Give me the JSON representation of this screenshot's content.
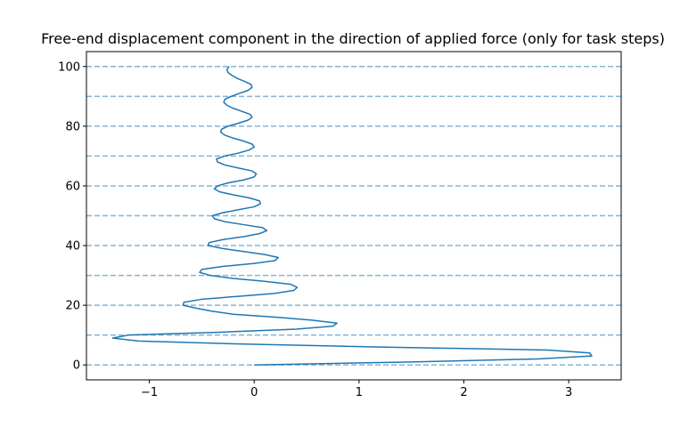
{
  "chart_data": {
    "type": "line",
    "title": "Free-end displacement component in the direction of applied force (only for task steps)",
    "xlabel": "",
    "ylabel": "",
    "xlim": [
      -1.6,
      3.5
    ],
    "ylim": [
      -5,
      105
    ],
    "xticks": [
      -1,
      0,
      1,
      2,
      3
    ],
    "yticks": [
      0,
      20,
      40,
      60,
      80,
      100
    ],
    "grid": false,
    "reference_lines": {
      "orientation": "horizontal",
      "style": "dashed",
      "color": "#1f77b4",
      "y": [
        0,
        10,
        20,
        30,
        40,
        50,
        60,
        70,
        80,
        90,
        100
      ]
    },
    "series": [
      {
        "color": "#1f77b4",
        "points": [
          [
            0.0,
            0
          ],
          [
            1.5,
            1
          ],
          [
            2.7,
            2
          ],
          [
            3.22,
            3
          ],
          [
            3.2,
            4
          ],
          [
            2.8,
            5
          ],
          [
            1.2,
            6
          ],
          [
            -0.1,
            7
          ],
          [
            -1.1,
            8
          ],
          [
            -1.35,
            9
          ],
          [
            -1.2,
            10
          ],
          [
            -0.3,
            11
          ],
          [
            0.4,
            12
          ],
          [
            0.75,
            13
          ],
          [
            0.79,
            14
          ],
          [
            0.55,
            15
          ],
          [
            0.2,
            16
          ],
          [
            -0.2,
            17
          ],
          [
            -0.4,
            18
          ],
          [
            -0.55,
            19
          ],
          [
            -0.68,
            20
          ],
          [
            -0.67,
            21
          ],
          [
            -0.5,
            22
          ],
          [
            -0.15,
            23
          ],
          [
            0.2,
            24
          ],
          [
            0.38,
            25
          ],
          [
            0.41,
            26
          ],
          [
            0.35,
            27
          ],
          [
            0.1,
            28
          ],
          [
            -0.2,
            29
          ],
          [
            -0.42,
            30
          ],
          [
            -0.52,
            31
          ],
          [
            -0.5,
            32
          ],
          [
            -0.3,
            33
          ],
          [
            0.0,
            34
          ],
          [
            0.2,
            35
          ],
          [
            0.23,
            36
          ],
          [
            0.1,
            37
          ],
          [
            -0.1,
            38
          ],
          [
            -0.3,
            39
          ],
          [
            -0.44,
            40
          ],
          [
            -0.43,
            41
          ],
          [
            -0.3,
            42
          ],
          [
            -0.1,
            43
          ],
          [
            0.05,
            44
          ],
          [
            0.12,
            45
          ],
          [
            0.08,
            46
          ],
          [
            -0.1,
            47
          ],
          [
            -0.28,
            48
          ],
          [
            -0.38,
            49
          ],
          [
            -0.4,
            50
          ],
          [
            -0.3,
            51
          ],
          [
            -0.15,
            52
          ],
          [
            0.0,
            53
          ],
          [
            0.06,
            54
          ],
          [
            0.05,
            55
          ],
          [
            -0.05,
            56
          ],
          [
            -0.2,
            57
          ],
          [
            -0.33,
            58
          ],
          [
            -0.38,
            59
          ],
          [
            -0.35,
            60
          ],
          [
            -0.25,
            61
          ],
          [
            -0.1,
            62
          ],
          [
            0.0,
            63
          ],
          [
            0.02,
            64
          ],
          [
            -0.02,
            65
          ],
          [
            -0.15,
            66
          ],
          [
            -0.28,
            67
          ],
          [
            -0.35,
            68
          ],
          [
            -0.36,
            69
          ],
          [
            -0.28,
            70
          ],
          [
            -0.15,
            71
          ],
          [
            -0.05,
            72
          ],
          [
            0.0,
            73
          ],
          [
            -0.02,
            74
          ],
          [
            -0.1,
            75
          ],
          [
            -0.2,
            76
          ],
          [
            -0.28,
            77
          ],
          [
            -0.32,
            78
          ],
          [
            -0.31,
            79
          ],
          [
            -0.25,
            80
          ],
          [
            -0.15,
            81
          ],
          [
            -0.06,
            82
          ],
          [
            -0.02,
            83
          ],
          [
            -0.04,
            84
          ],
          [
            -0.12,
            85
          ],
          [
            -0.2,
            86
          ],
          [
            -0.26,
            87
          ],
          [
            -0.29,
            88
          ],
          [
            -0.28,
            89
          ],
          [
            -0.22,
            90
          ],
          [
            -0.14,
            91
          ],
          [
            -0.06,
            92
          ],
          [
            -0.02,
            93
          ],
          [
            -0.03,
            94
          ],
          [
            -0.09,
            95
          ],
          [
            -0.16,
            96
          ],
          [
            -0.21,
            97
          ],
          [
            -0.25,
            98
          ],
          [
            -0.26,
            99
          ],
          [
            -0.24,
            100
          ]
        ]
      }
    ]
  }
}
